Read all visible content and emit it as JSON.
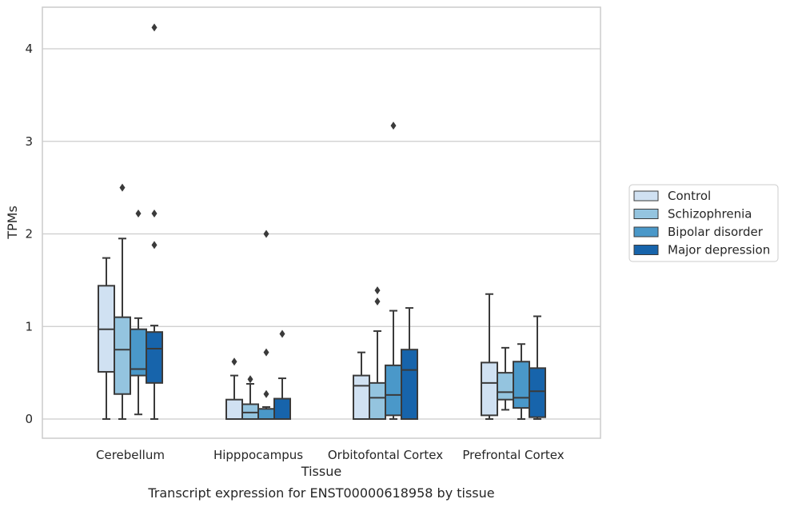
{
  "chart_data": {
    "type": "box",
    "title": "",
    "caption": "Transcript expression for ENST00000618958 by tissue",
    "xlabel": "Tissue",
    "ylabel": "TPMs",
    "ylim": [
      -0.2,
      4.45
    ],
    "yticks": [
      0,
      1,
      2,
      3,
      4
    ],
    "grid": "horizontal",
    "legend_position": "right",
    "categories": [
      "Cerebellum",
      "Hipppocampus",
      "Orbitofontal Cortex",
      "Prefrontal Cortex"
    ],
    "series": [
      {
        "name": "Control",
        "color": "#d0e1f2",
        "boxes": [
          {
            "whisker_low": 0.0,
            "q1": 0.51,
            "median": 0.97,
            "q3": 1.44,
            "whisker_high": 1.74,
            "outliers": []
          },
          {
            "whisker_low": 0.0,
            "q1": 0.0,
            "median": 0.0,
            "q3": 0.21,
            "whisker_high": 0.47,
            "outliers": [
              0.62
            ]
          },
          {
            "whisker_low": 0.0,
            "q1": 0.0,
            "median": 0.36,
            "q3": 0.47,
            "whisker_high": 0.72,
            "outliers": []
          },
          {
            "whisker_low": 0.0,
            "q1": 0.04,
            "median": 0.39,
            "q3": 0.61,
            "whisker_high": 1.35,
            "outliers": []
          }
        ]
      },
      {
        "name": "Schizophrenia",
        "color": "#94c4df",
        "boxes": [
          {
            "whisker_low": 0.0,
            "q1": 0.27,
            "median": 0.75,
            "q3": 1.1,
            "whisker_high": 1.95,
            "outliers": [
              2.5
            ]
          },
          {
            "whisker_low": 0.0,
            "q1": 0.0,
            "median": 0.07,
            "q3": 0.16,
            "whisker_high": 0.38,
            "outliers": [
              0.43
            ]
          },
          {
            "whisker_low": 0.0,
            "q1": 0.0,
            "median": 0.23,
            "q3": 0.39,
            "whisker_high": 0.95,
            "outliers": [
              1.27,
              1.39
            ]
          },
          {
            "whisker_low": 0.1,
            "q1": 0.21,
            "median": 0.29,
            "q3": 0.5,
            "whisker_high": 0.77,
            "outliers": []
          }
        ]
      },
      {
        "name": "Bipolar disorder",
        "color": "#4a98c9",
        "boxes": [
          {
            "whisker_low": 0.05,
            "q1": 0.47,
            "median": 0.54,
            "q3": 0.97,
            "whisker_high": 1.09,
            "outliers": [
              2.22
            ]
          },
          {
            "whisker_low": 0.0,
            "q1": 0.0,
            "median": 0.0,
            "q3": 0.11,
            "whisker_high": 0.13,
            "outliers": [
              0.27,
              0.72,
              2.0
            ]
          },
          {
            "whisker_low": 0.0,
            "q1": 0.04,
            "median": 0.26,
            "q3": 0.58,
            "whisker_high": 1.17,
            "outliers": [
              3.17
            ]
          },
          {
            "whisker_low": 0.0,
            "q1": 0.12,
            "median": 0.23,
            "q3": 0.62,
            "whisker_high": 0.81,
            "outliers": []
          }
        ]
      },
      {
        "name": "Major depression",
        "color": "#1764ab",
        "boxes": [
          {
            "whisker_low": 0.0,
            "q1": 0.39,
            "median": 0.76,
            "q3": 0.94,
            "whisker_high": 1.01,
            "outliers": [
              1.88,
              2.22,
              4.23
            ]
          },
          {
            "whisker_low": 0.0,
            "q1": 0.0,
            "median": 0.0,
            "q3": 0.22,
            "whisker_high": 0.44,
            "outliers": [
              0.92
            ]
          },
          {
            "whisker_low": 0.0,
            "q1": 0.0,
            "median": 0.53,
            "q3": 0.75,
            "whisker_high": 1.2,
            "outliers": []
          },
          {
            "whisker_low": 0.0,
            "q1": 0.02,
            "median": 0.3,
            "q3": 0.55,
            "whisker_high": 1.11,
            "outliers": []
          }
        ]
      }
    ]
  }
}
